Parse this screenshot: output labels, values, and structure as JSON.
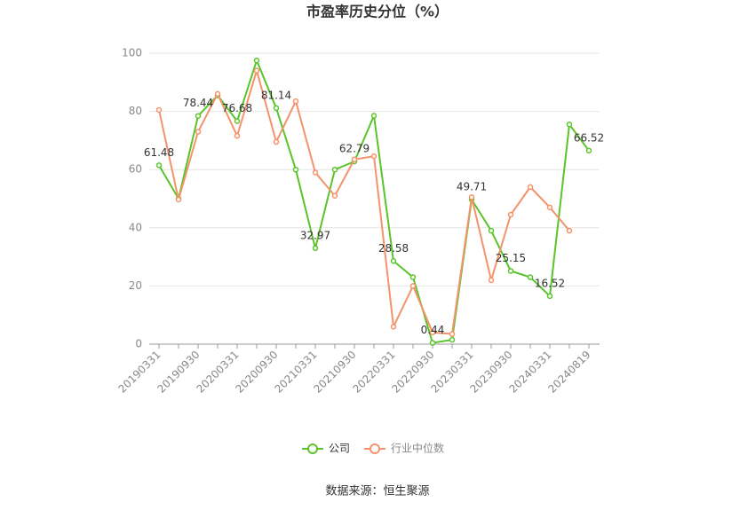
{
  "chart_data": {
    "type": "line",
    "title": "市盈率历史分位（%）",
    "source": "数据来源：恒生聚源",
    "categories": [
      "20190331",
      null,
      "20190930",
      null,
      "20200331",
      null,
      "20200930",
      null,
      "20210331",
      null,
      "20210930",
      null,
      "20220331",
      null,
      "20220930",
      null,
      "20230331",
      null,
      "20230930",
      null,
      "20240331",
      null,
      "20240819"
    ],
    "series": [
      {
        "name": "公司",
        "color": "#5ac42a",
        "values": [
          61.48,
          50,
          78.44,
          85.5,
          76.68,
          97.5,
          81.14,
          60,
          32.97,
          60,
          62.79,
          78.5,
          28.58,
          23,
          0.44,
          1.5,
          49.71,
          39,
          25.15,
          23,
          16.52,
          75.5,
          66.52
        ],
        "value_labels": [
          "61.48",
          null,
          "78.44",
          null,
          "76.68",
          null,
          "81.14",
          null,
          "32.97",
          null,
          "62.79",
          null,
          "28.58",
          null,
          "0.44",
          null,
          "49.71",
          null,
          "25.15",
          null,
          "16.52",
          null,
          "66.52"
        ]
      },
      {
        "name": "行业中位数",
        "color": "#f4936b",
        "values": [
          80.5,
          49.7,
          73,
          86,
          71.6,
          94,
          69.5,
          83.5,
          59,
          51,
          63.5,
          64.6,
          6,
          20,
          4,
          3.5,
          50.5,
          22,
          44.5,
          54,
          47,
          39,
          null
        ]
      }
    ],
    "ylim": [
      0,
      100
    ],
    "yticks": [
      0,
      20,
      40,
      60,
      80,
      100
    ],
    "grid": true,
    "legend": "bottom"
  }
}
